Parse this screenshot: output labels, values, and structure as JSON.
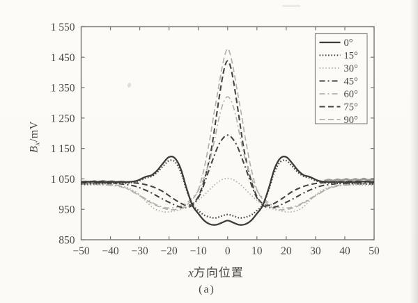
{
  "figure": {
    "caption": "(a)",
    "background": "#fcfbf8"
  },
  "colors": {
    "dark_line": "#3d3c39",
    "light_line": "#b3b1aa",
    "axis": "#76756f",
    "text": "#4a4945",
    "legend_border": "#8a8983",
    "legend_fill": "#fcfbf8"
  },
  "chart_data": {
    "type": "line",
    "title": "",
    "xlabel": "x方向位置",
    "xlabel_parts": {
      "symbol": "x",
      "text": "方向位置"
    },
    "ylabel": "Bx/mV",
    "ylabel_parts": {
      "symbol": "B",
      "subscript": "x",
      "unit": "/mV"
    },
    "xlim": [
      -50,
      50
    ],
    "ylim": [
      850,
      1550
    ],
    "x_ticks": [
      -50,
      -40,
      -30,
      -20,
      -10,
      0,
      10,
      20,
      30,
      40,
      50
    ],
    "x_tick_labels": [
      "−50",
      "−40",
      "−30",
      "−20",
      "−10",
      "0",
      "10",
      "20",
      "30",
      "40",
      "50"
    ],
    "y_ticks": [
      850,
      950,
      1050,
      1150,
      1250,
      1350,
      1450,
      1550
    ],
    "y_tick_labels": [
      "850",
      "950",
      "1 050",
      "1 150",
      "1 250",
      "1 350",
      "1 450",
      "1 550"
    ],
    "grid": false,
    "legend_position": "top-right",
    "legend_labels": [
      "0°",
      "15°",
      "30°",
      "45°",
      "60°",
      "75°",
      "90°"
    ],
    "series": [
      {
        "name": "0°",
        "color": "#3d3c39",
        "width": 2.3,
        "dash": "",
        "points": [
          [
            -50,
            1040
          ],
          [
            -46,
            1041
          ],
          [
            -42,
            1039
          ],
          [
            -38,
            1040
          ],
          [
            -34,
            1040
          ],
          [
            -31,
            1044
          ],
          [
            -28,
            1057
          ],
          [
            -26,
            1062
          ],
          [
            -24,
            1078
          ],
          [
            -22,
            1102
          ],
          [
            -20,
            1122
          ],
          [
            -18,
            1118
          ],
          [
            -16,
            1083
          ],
          [
            -14,
            1018
          ],
          [
            -12,
            963
          ],
          [
            -10,
            936
          ],
          [
            -8,
            913
          ],
          [
            -6,
            901
          ],
          [
            -4,
            899
          ],
          [
            -2,
            906
          ],
          [
            0,
            913
          ],
          [
            2,
            906
          ],
          [
            4,
            899
          ],
          [
            6,
            901
          ],
          [
            8,
            913
          ],
          [
            10,
            936
          ],
          [
            12,
            963
          ],
          [
            14,
            1018
          ],
          [
            16,
            1083
          ],
          [
            18,
            1118
          ],
          [
            20,
            1122
          ],
          [
            22,
            1102
          ],
          [
            24,
            1078
          ],
          [
            26,
            1062
          ],
          [
            28,
            1057
          ],
          [
            31,
            1044
          ],
          [
            34,
            1040
          ],
          [
            38,
            1040
          ],
          [
            42,
            1039
          ],
          [
            46,
            1041
          ],
          [
            50,
            1040
          ]
        ]
      },
      {
        "name": "15°",
        "color": "#4a4946",
        "width": 2.3,
        "dash": "1.6 2.6",
        "points": [
          [
            -50,
            1033
          ],
          [
            -45,
            1034
          ],
          [
            -40,
            1035
          ],
          [
            -35,
            1036
          ],
          [
            -31,
            1041
          ],
          [
            -28,
            1053
          ],
          [
            -26,
            1058
          ],
          [
            -24,
            1072
          ],
          [
            -22,
            1092
          ],
          [
            -20,
            1110
          ],
          [
            -18,
            1106
          ],
          [
            -16,
            1073
          ],
          [
            -14,
            1013
          ],
          [
            -12,
            966
          ],
          [
            -10,
            946
          ],
          [
            -8,
            931
          ],
          [
            -6,
            924
          ],
          [
            -4,
            922
          ],
          [
            -2,
            928
          ],
          [
            0,
            933
          ],
          [
            2,
            928
          ],
          [
            4,
            922
          ],
          [
            6,
            924
          ],
          [
            8,
            931
          ],
          [
            10,
            946
          ],
          [
            12,
            966
          ],
          [
            14,
            1013
          ],
          [
            16,
            1073
          ],
          [
            18,
            1106
          ],
          [
            20,
            1110
          ],
          [
            22,
            1092
          ],
          [
            24,
            1072
          ],
          [
            26,
            1058
          ],
          [
            28,
            1053
          ],
          [
            31,
            1041
          ],
          [
            35,
            1036
          ],
          [
            40,
            1035
          ],
          [
            45,
            1034
          ],
          [
            50,
            1033
          ]
        ]
      },
      {
        "name": "30°",
        "color": "#b3b1aa",
        "width": 1.8,
        "dash": "1.6 2.8",
        "points": [
          [
            -50,
            1029
          ],
          [
            -45,
            1030
          ],
          [
            -40,
            1030
          ],
          [
            -36,
            1026
          ],
          [
            -33,
            1016
          ],
          [
            -30,
            997
          ],
          [
            -27,
            968
          ],
          [
            -25,
            952
          ],
          [
            -23,
            944
          ],
          [
            -21,
            941
          ],
          [
            -19,
            943
          ],
          [
            -16,
            950
          ],
          [
            -13,
            962
          ],
          [
            -10,
            980
          ],
          [
            -8,
            997
          ],
          [
            -6,
            1016
          ],
          [
            -4,
            1034
          ],
          [
            -2,
            1047
          ],
          [
            0,
            1052
          ],
          [
            2,
            1047
          ],
          [
            4,
            1034
          ],
          [
            6,
            1016
          ],
          [
            8,
            997
          ],
          [
            10,
            980
          ],
          [
            13,
            962
          ],
          [
            16,
            950
          ],
          [
            19,
            943
          ],
          [
            21,
            941
          ],
          [
            23,
            944
          ],
          [
            25,
            952
          ],
          [
            27,
            968
          ],
          [
            30,
            997
          ],
          [
            33,
            1016
          ],
          [
            36,
            1026
          ],
          [
            40,
            1030
          ],
          [
            45,
            1030
          ],
          [
            50,
            1029
          ]
        ]
      },
      {
        "name": "45°",
        "color": "#45443f",
        "width": 2.1,
        "dash": "8 4 2 4",
        "points": [
          [
            -50,
            1037
          ],
          [
            -45,
            1037
          ],
          [
            -40,
            1036
          ],
          [
            -36,
            1033
          ],
          [
            -32,
            1027
          ],
          [
            -29,
            1017
          ],
          [
            -26,
            1004
          ],
          [
            -23,
            988
          ],
          [
            -20,
            973
          ],
          [
            -17,
            960
          ],
          [
            -15,
            956
          ],
          [
            -13,
            958
          ],
          [
            -11,
            973
          ],
          [
            -9,
            1008
          ],
          [
            -7,
            1062
          ],
          [
            -5,
            1115
          ],
          [
            -3,
            1163
          ],
          [
            -1,
            1190
          ],
          [
            0,
            1194
          ],
          [
            1,
            1190
          ],
          [
            3,
            1163
          ],
          [
            5,
            1115
          ],
          [
            7,
            1062
          ],
          [
            9,
            1008
          ],
          [
            11,
            973
          ],
          [
            13,
            958
          ],
          [
            15,
            956
          ],
          [
            17,
            960
          ],
          [
            20,
            973
          ],
          [
            23,
            988
          ],
          [
            26,
            1004
          ],
          [
            29,
            1017
          ],
          [
            32,
            1027
          ],
          [
            36,
            1033
          ],
          [
            40,
            1036
          ],
          [
            45,
            1037
          ],
          [
            50,
            1037
          ]
        ]
      },
      {
        "name": "60°",
        "color": "#b3b1aa",
        "width": 1.7,
        "dash": "8 4 2 4",
        "points": [
          [
            -50,
            1032
          ],
          [
            -45,
            1032
          ],
          [
            -40,
            1029
          ],
          [
            -36,
            1023
          ],
          [
            -33,
            1012
          ],
          [
            -30,
            996
          ],
          [
            -27,
            979
          ],
          [
            -24,
            964
          ],
          [
            -21,
            955
          ],
          [
            -18,
            956
          ],
          [
            -15,
            965
          ],
          [
            -12,
            988
          ],
          [
            -10,
            1012
          ],
          [
            -8,
            1055
          ],
          [
            -6,
            1115
          ],
          [
            -5,
            1155
          ],
          [
            -4,
            1200
          ],
          [
            -3,
            1248
          ],
          [
            -2,
            1285
          ],
          [
            -1,
            1310
          ],
          [
            0,
            1320
          ],
          [
            1,
            1310
          ],
          [
            2,
            1285
          ],
          [
            3,
            1248
          ],
          [
            4,
            1200
          ],
          [
            5,
            1155
          ],
          [
            6,
            1115
          ],
          [
            8,
            1055
          ],
          [
            10,
            1012
          ],
          [
            12,
            988
          ],
          [
            15,
            965
          ],
          [
            18,
            956
          ],
          [
            21,
            955
          ],
          [
            24,
            964
          ],
          [
            27,
            979
          ],
          [
            30,
            996
          ],
          [
            33,
            1012
          ],
          [
            36,
            1023
          ],
          [
            40,
            1029
          ],
          [
            45,
            1032
          ],
          [
            50,
            1032
          ]
        ]
      },
      {
        "name": "75°",
        "color": "#45443f",
        "width": 2.1,
        "dash": "8 4.5",
        "points": [
          [
            -50,
            1041
          ],
          [
            -45,
            1042
          ],
          [
            -40,
            1041
          ],
          [
            -35,
            1039
          ],
          [
            -31,
            1036
          ],
          [
            -28,
            1031
          ],
          [
            -25,
            1022
          ],
          [
            -22,
            1008
          ],
          [
            -19,
            988
          ],
          [
            -16,
            970
          ],
          [
            -14,
            963
          ],
          [
            -12,
            968
          ],
          [
            -10,
            992
          ],
          [
            -8,
            1045
          ],
          [
            -6,
            1125
          ],
          [
            -5,
            1180
          ],
          [
            -4,
            1245
          ],
          [
            -3,
            1310
          ],
          [
            -2,
            1370
          ],
          [
            -1,
            1418
          ],
          [
            0,
            1438
          ],
          [
            1,
            1418
          ],
          [
            2,
            1370
          ],
          [
            3,
            1310
          ],
          [
            4,
            1245
          ],
          [
            5,
            1180
          ],
          [
            6,
            1125
          ],
          [
            8,
            1045
          ],
          [
            10,
            992
          ],
          [
            12,
            968
          ],
          [
            14,
            963
          ],
          [
            16,
            970
          ],
          [
            19,
            988
          ],
          [
            22,
            1008
          ],
          [
            25,
            1022
          ],
          [
            28,
            1031
          ],
          [
            31,
            1036
          ],
          [
            35,
            1039
          ],
          [
            40,
            1041
          ],
          [
            45,
            1042
          ],
          [
            50,
            1041
          ]
        ]
      },
      {
        "name": "90°",
        "color": "#b3b1aa",
        "width": 1.7,
        "dash": "8 4.5",
        "points": [
          [
            -50,
            1036
          ],
          [
            -45,
            1035
          ],
          [
            -40,
            1032
          ],
          [
            -36,
            1025
          ],
          [
            -33,
            1011
          ],
          [
            -30,
            994
          ],
          [
            -27,
            976
          ],
          [
            -24,
            961
          ],
          [
            -21,
            951
          ],
          [
            -18,
            949
          ],
          [
            -15,
            957
          ],
          [
            -12,
            983
          ],
          [
            -10,
            1015
          ],
          [
            -8,
            1085
          ],
          [
            -6,
            1185
          ],
          [
            -5,
            1245
          ],
          [
            -4,
            1300
          ],
          [
            -3,
            1355
          ],
          [
            -2,
            1410
          ],
          [
            -1,
            1455
          ],
          [
            0,
            1478
          ],
          [
            1,
            1455
          ],
          [
            2,
            1410
          ],
          [
            3,
            1355
          ],
          [
            4,
            1300
          ],
          [
            5,
            1245
          ],
          [
            6,
            1185
          ],
          [
            8,
            1085
          ],
          [
            10,
            1015
          ],
          [
            12,
            983
          ],
          [
            15,
            957
          ],
          [
            18,
            949
          ],
          [
            21,
            951
          ],
          [
            24,
            961
          ],
          [
            27,
            976
          ],
          [
            30,
            994
          ],
          [
            33,
            1011
          ],
          [
            36,
            1025
          ],
          [
            40,
            1032
          ],
          [
            45,
            1035
          ],
          [
            50,
            1036
          ]
        ]
      }
    ],
    "noise_bands": [
      {
        "points": [
          [
            -50,
            1037
          ],
          [
            -48.5,
            1041
          ],
          [
            -47,
            1038
          ],
          [
            -45.5,
            1042
          ],
          [
            -44,
            1039
          ],
          [
            -42.5,
            1043
          ],
          [
            -41,
            1040
          ],
          [
            -39.5,
            1042
          ],
          [
            -38,
            1039
          ],
          [
            -36.5,
            1041
          ],
          [
            -35,
            1040
          ]
        ]
      },
      {
        "points": [
          [
            33,
            1043
          ],
          [
            34.5,
            1047
          ],
          [
            36,
            1044
          ],
          [
            37.5,
            1048
          ],
          [
            39,
            1045
          ],
          [
            40.5,
            1049
          ],
          [
            42,
            1045
          ],
          [
            43.5,
            1049
          ],
          [
            45,
            1046
          ],
          [
            46.5,
            1050
          ],
          [
            48,
            1046
          ],
          [
            49.5,
            1049
          ],
          [
            50,
            1047
          ]
        ]
      }
    ]
  }
}
